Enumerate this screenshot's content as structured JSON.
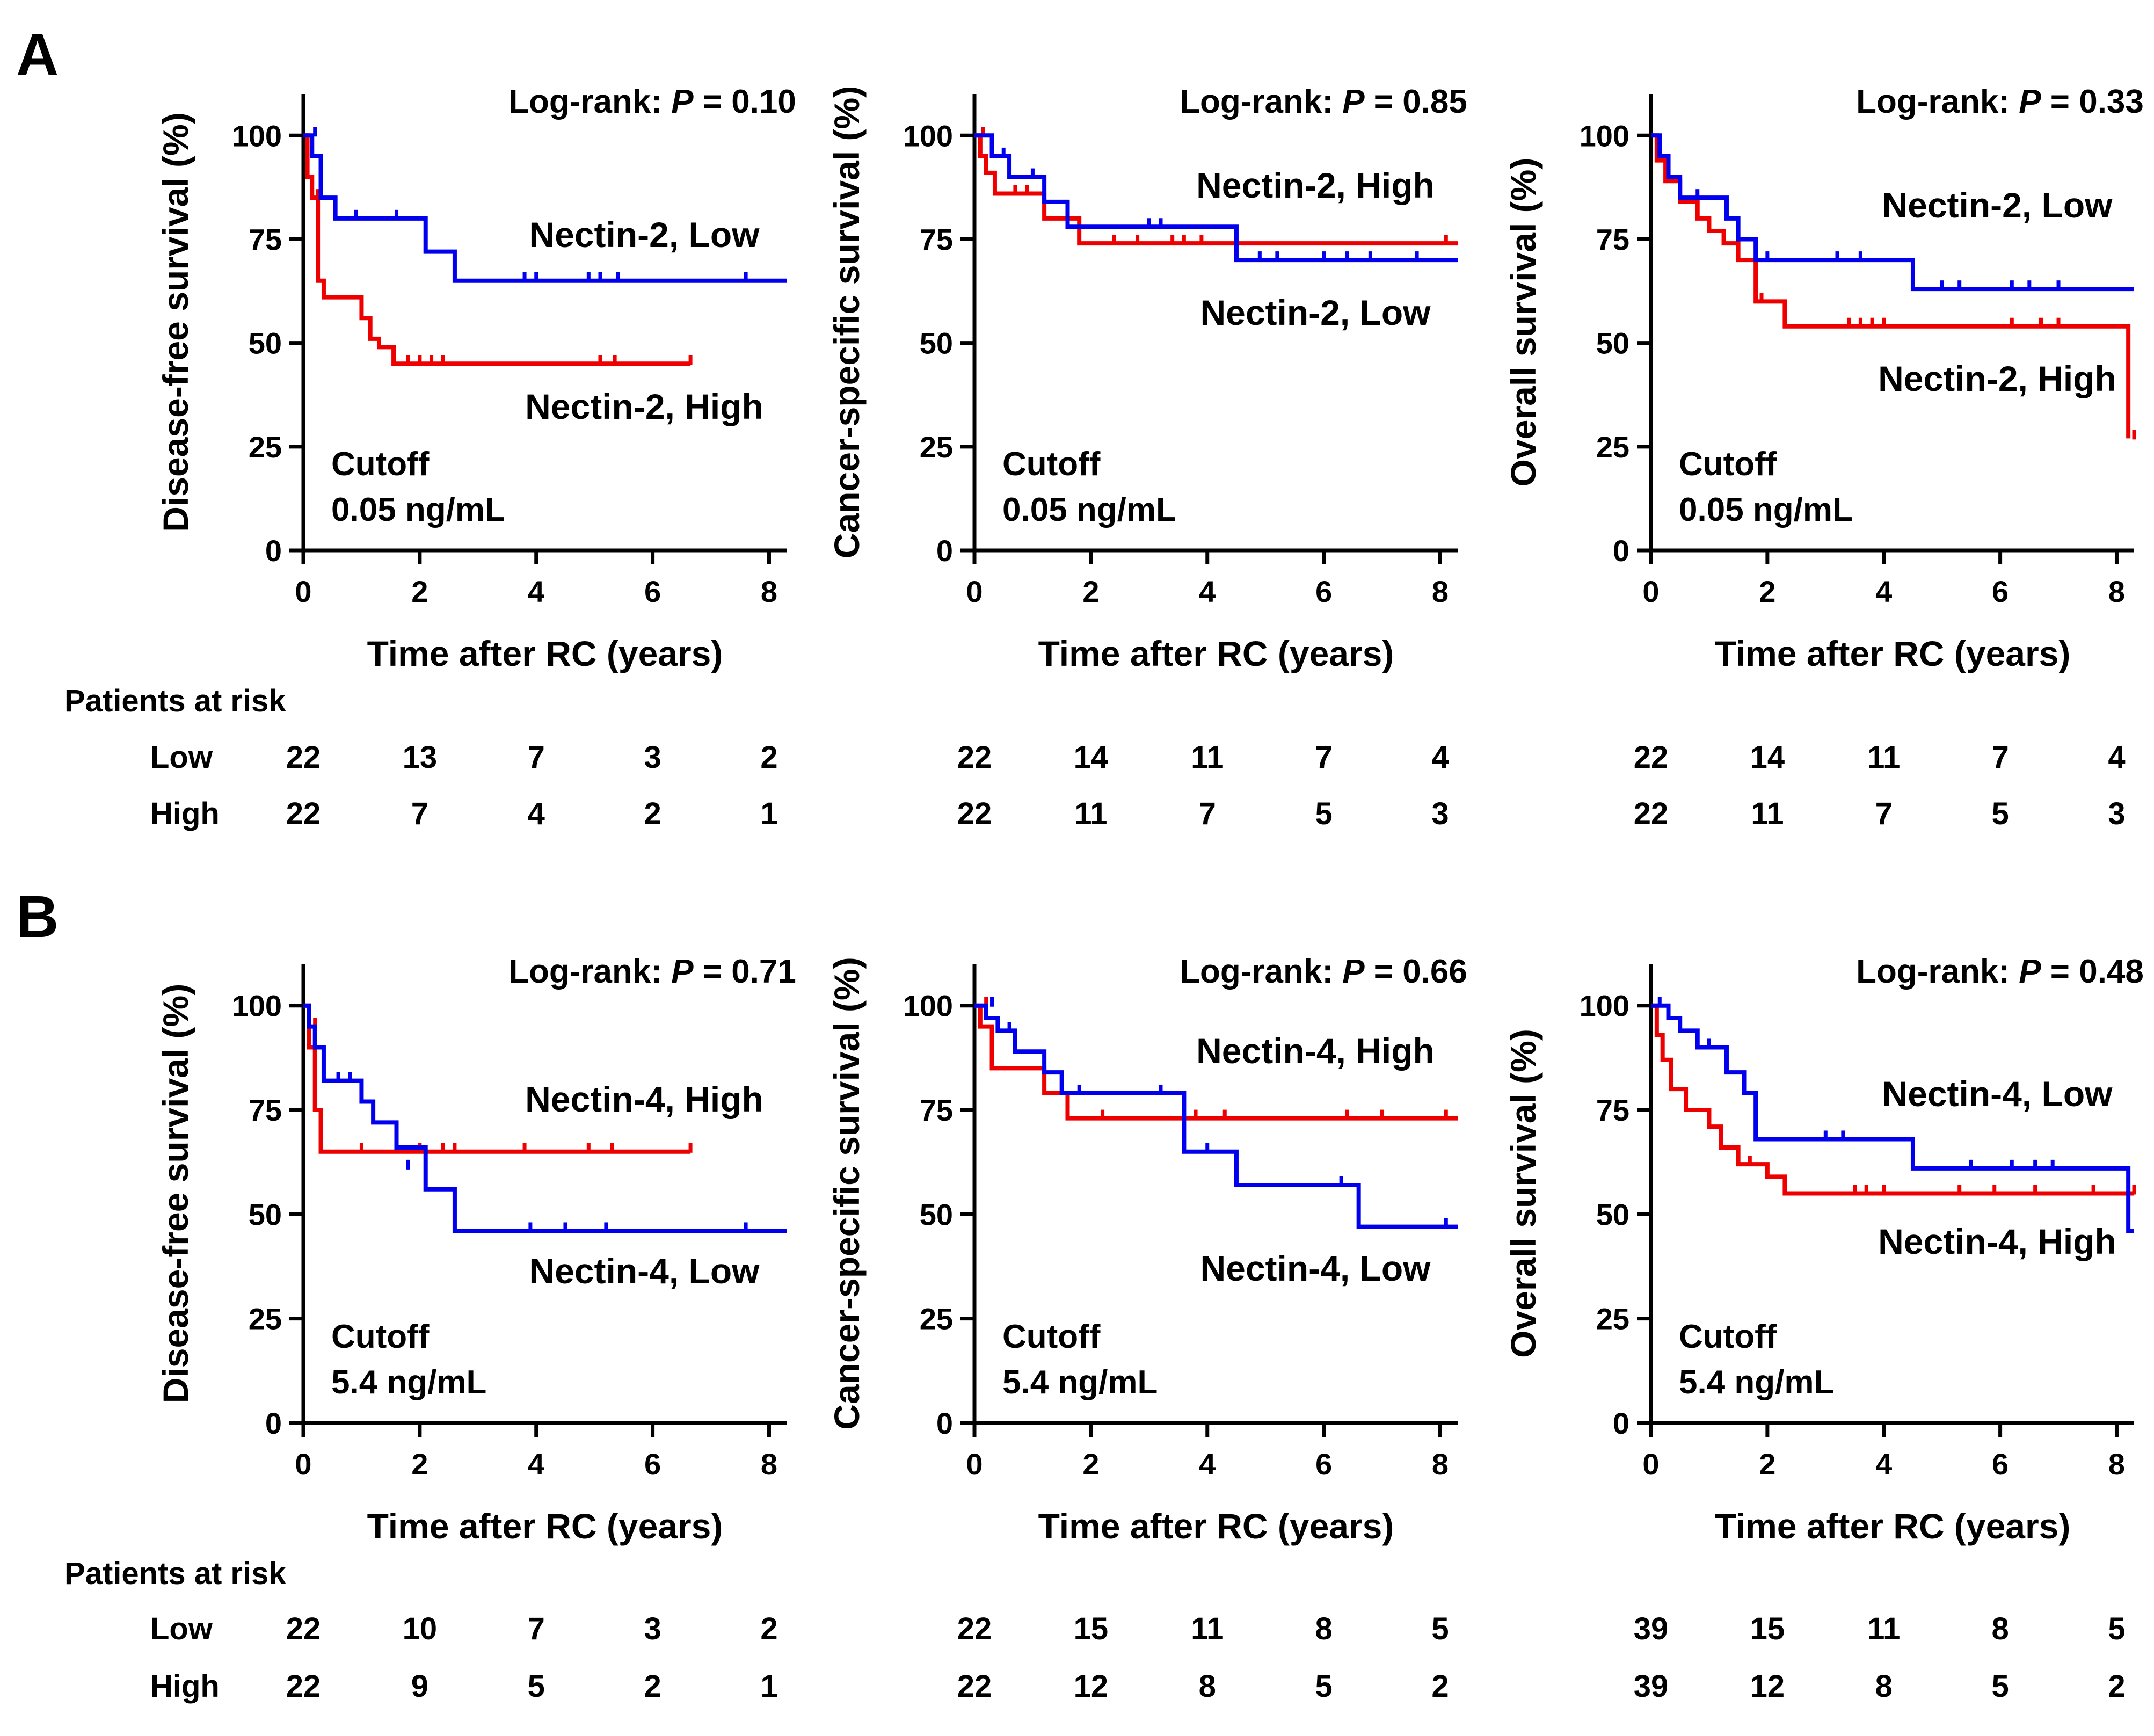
{
  "panels": [
    {
      "letter": "A"
    },
    {
      "letter": "B"
    }
  ],
  "risk_table": {
    "header": "Patients at risk",
    "low_label": "Low",
    "high_label": "High"
  },
  "colors": {
    "low": "#0000ee",
    "high": "#ee0000",
    "axis": "#000000"
  },
  "chart_data": [
    {
      "type": "line",
      "panel": "A",
      "ylabel": "Disease-free survival (%)",
      "xlabel": "Time after RC (years)",
      "xlim": [
        0,
        8.3
      ],
      "ylim": [
        0,
        110
      ],
      "xticks": [
        0,
        2,
        4,
        6,
        8
      ],
      "yticks": [
        0,
        25,
        50,
        75,
        100
      ],
      "logrank": {
        "prefix": "Log-rank: ",
        "p": "P",
        "value": " = 0.10"
      },
      "cutoff": {
        "line1": "Cutoff",
        "line2": "0.05 ng/mL"
      },
      "series": [
        {
          "name": "Nectin-2, Low",
          "group": "low",
          "x": [
            0,
            0.15,
            0.3,
            0.55,
            2.1,
            2.6,
            8.3
          ],
          "y": [
            100,
            95,
            85,
            80,
            72,
            65,
            65
          ],
          "censored": [
            [
              0.2,
              100
            ],
            [
              0.9,
              80
            ],
            [
              1.6,
              80
            ],
            [
              3.8,
              65
            ],
            [
              4.0,
              65
            ],
            [
              4.9,
              65
            ],
            [
              5.1,
              65
            ],
            [
              5.4,
              65
            ],
            [
              7.6,
              65
            ]
          ]
        },
        {
          "name": "Nectin-2, High",
          "group": "high",
          "x": [
            0,
            0.07,
            0.15,
            0.25,
            0.35,
            1.0,
            1.15,
            1.3,
            1.55,
            6.65
          ],
          "y": [
            100,
            90,
            85,
            65,
            61,
            56,
            51,
            49,
            45,
            45
          ],
          "censored": [
            [
              0.25,
              85
            ],
            [
              1.8,
              45
            ],
            [
              2.0,
              45
            ],
            [
              2.2,
              45
            ],
            [
              2.4,
              45
            ],
            [
              5.1,
              45
            ],
            [
              5.35,
              45
            ],
            [
              6.65,
              45
            ]
          ]
        }
      ],
      "labels": {
        "low": "Nectin-2, Low",
        "high": "Nectin-2, High"
      },
      "risk": {
        "low": [
          "22",
          "13",
          "7",
          "3",
          "2"
        ],
        "high": [
          "22",
          "7",
          "4",
          "2",
          "1"
        ]
      }
    },
    {
      "type": "line",
      "panel": "A",
      "ylabel": "Cancer-specific survival (%)",
      "xlabel": "Time after RC (years)",
      "xlim": [
        0,
        8.3
      ],
      "ylim": [
        0,
        110
      ],
      "xticks": [
        0,
        2,
        4,
        6,
        8
      ],
      "yticks": [
        0,
        25,
        50,
        75,
        100
      ],
      "logrank": {
        "prefix": "Log-rank: ",
        "p": "P",
        "value": " = 0.85"
      },
      "cutoff": {
        "line1": "Cutoff",
        "line2": "0.05 ng/mL"
      },
      "series": [
        {
          "name": "Nectin-2, Low",
          "group": "low",
          "x": [
            0,
            0.3,
            0.6,
            1.2,
            1.6,
            4.5,
            8.3
          ],
          "y": [
            100,
            95,
            90,
            84,
            78,
            70,
            70
          ],
          "censored": [
            [
              0.5,
              95
            ],
            [
              1.0,
              90
            ],
            [
              3.0,
              78
            ],
            [
              3.2,
              78
            ],
            [
              4.9,
              70
            ],
            [
              5.2,
              70
            ],
            [
              6.0,
              70
            ],
            [
              6.4,
              70
            ],
            [
              6.8,
              70
            ],
            [
              7.6,
              70
            ]
          ]
        },
        {
          "name": "Nectin-2, High",
          "group": "high",
          "x": [
            0,
            0.1,
            0.2,
            0.35,
            1.2,
            1.8,
            8.3
          ],
          "y": [
            100,
            95,
            91,
            86,
            80,
            74,
            74
          ],
          "censored": [
            [
              0.15,
              100
            ],
            [
              0.7,
              86
            ],
            [
              0.9,
              86
            ],
            [
              2.4,
              74
            ],
            [
              2.8,
              74
            ],
            [
              3.4,
              74
            ],
            [
              3.6,
              74
            ],
            [
              3.9,
              74
            ],
            [
              8.1,
              74
            ]
          ]
        }
      ],
      "labels": {
        "low": "Nectin-2, Low",
        "high": "Nectin-2, High"
      },
      "risk": {
        "low": [
          "22",
          "14",
          "11",
          "7",
          "4"
        ],
        "high": [
          "22",
          "11",
          "7",
          "5",
          "3"
        ]
      }
    },
    {
      "type": "line",
      "panel": "A",
      "ylabel": "Overall survival (%)",
      "xlabel": "Time after RC (years)",
      "xlim": [
        0,
        8.3
      ],
      "ylim": [
        0,
        110
      ],
      "xticks": [
        0,
        2,
        4,
        6,
        8
      ],
      "yticks": [
        0,
        25,
        50,
        75,
        100
      ],
      "logrank": {
        "prefix": "Log-rank: ",
        "p": "P",
        "value": " = 0.33"
      },
      "cutoff": {
        "line1": "Cutoff",
        "line2": "0.05 ng/mL"
      },
      "series": [
        {
          "name": "Nectin-2, Low",
          "group": "low",
          "x": [
            0,
            0.15,
            0.3,
            0.5,
            1.3,
            1.5,
            1.8,
            4.5,
            8.3
          ],
          "y": [
            100,
            95,
            90,
            85,
            80,
            75,
            70,
            63,
            63
          ],
          "censored": [
            [
              0.8,
              85
            ],
            [
              2.0,
              70
            ],
            [
              3.2,
              70
            ],
            [
              3.6,
              70
            ],
            [
              5.0,
              63
            ],
            [
              5.3,
              63
            ],
            [
              6.2,
              63
            ],
            [
              6.5,
              63
            ],
            [
              7.0,
              63
            ]
          ]
        },
        {
          "name": "Nectin-2, High",
          "group": "high",
          "x": [
            0,
            0.1,
            0.25,
            0.5,
            0.8,
            1.0,
            1.25,
            1.5,
            1.8,
            2.3,
            8.2
          ],
          "y": [
            100,
            94,
            89,
            84,
            80,
            77,
            74,
            70,
            60,
            54,
            27
          ],
          "censored": [
            [
              1.9,
              60
            ],
            [
              3.4,
              54
            ],
            [
              3.6,
              54
            ],
            [
              3.8,
              54
            ],
            [
              4.0,
              54
            ],
            [
              6.2,
              54
            ],
            [
              6.7,
              54
            ],
            [
              7.0,
              54
            ],
            [
              8.3,
              27
            ]
          ]
        }
      ],
      "labels": {
        "low": "Nectin-2, Low",
        "high": "Nectin-2, High"
      },
      "risk": {
        "low": [
          "22",
          "14",
          "11",
          "7",
          "4"
        ],
        "high": [
          "22",
          "11",
          "7",
          "5",
          "3"
        ]
      }
    },
    {
      "type": "line",
      "panel": "B",
      "ylabel": "Disease-free survival (%)",
      "xlabel": "Time after RC (years)",
      "xlim": [
        0,
        8.3
      ],
      "ylim": [
        0,
        110
      ],
      "xticks": [
        0,
        2,
        4,
        6,
        8
      ],
      "yticks": [
        0,
        25,
        50,
        75,
        100
      ],
      "logrank": {
        "prefix": "Log-rank: ",
        "p": "P",
        "value": " = 0.71"
      },
      "cutoff": {
        "line1": "Cutoff",
        "line2": "5.4 ng/mL"
      },
      "series": [
        {
          "name": "Nectin-4, Low",
          "group": "low",
          "x": [
            0,
            0.1,
            0.2,
            0.35,
            1.0,
            1.2,
            1.6,
            2.1,
            2.6,
            8.3
          ],
          "y": [
            100,
            95,
            90,
            82,
            77,
            72,
            66,
            56,
            46,
            46
          ],
          "censored": [
            [
              0.6,
              82
            ],
            [
              0.8,
              82
            ],
            [
              1.8,
              61
            ],
            [
              3.9,
              46
            ],
            [
              4.5,
              46
            ],
            [
              5.2,
              46
            ],
            [
              7.6,
              46
            ]
          ]
        },
        {
          "name": "Nectin-4, High",
          "group": "high",
          "x": [
            0,
            0.1,
            0.2,
            0.3,
            6.65
          ],
          "y": [
            100,
            90,
            75,
            65,
            65
          ],
          "censored": [
            [
              0.2,
              95
            ],
            [
              1.0,
              65
            ],
            [
              2.0,
              65
            ],
            [
              2.4,
              65
            ],
            [
              2.6,
              65
            ],
            [
              3.8,
              65
            ],
            [
              4.9,
              65
            ],
            [
              5.3,
              65
            ],
            [
              6.65,
              65
            ]
          ]
        }
      ],
      "labels": {
        "low": "Nectin-4, Low",
        "high": "Nectin-4, High"
      },
      "risk": {
        "low": [
          "22",
          "10",
          "7",
          "3",
          "2"
        ],
        "high": [
          "22",
          "9",
          "5",
          "2",
          "1"
        ]
      }
    },
    {
      "type": "line",
      "panel": "B",
      "ylabel": "Cancer-specific survival (%)",
      "xlabel": "Time after RC (years)",
      "xlim": [
        0,
        8.3
      ],
      "ylim": [
        0,
        110
      ],
      "xticks": [
        0,
        2,
        4,
        6,
        8
      ],
      "yticks": [
        0,
        25,
        50,
        75,
        100
      ],
      "logrank": {
        "prefix": "Log-rank: ",
        "p": "P",
        "value": " = 0.66"
      },
      "cutoff": {
        "line1": "Cutoff",
        "line2": "5.4 ng/mL"
      },
      "series": [
        {
          "name": "Nectin-4, Low",
          "group": "low",
          "x": [
            0,
            0.2,
            0.4,
            0.7,
            1.2,
            1.5,
            3.6,
            4.5,
            5.5,
            6.6,
            8.3
          ],
          "y": [
            100,
            97,
            94,
            89,
            84,
            79,
            65,
            57,
            57,
            47,
            47
          ],
          "censored": [
            [
              0.3,
              100
            ],
            [
              0.6,
              94
            ],
            [
              1.8,
              79
            ],
            [
              3.2,
              79
            ],
            [
              4.0,
              65
            ],
            [
              6.3,
              57
            ],
            [
              8.1,
              47
            ]
          ]
        },
        {
          "name": "Nectin-4, High",
          "group": "high",
          "x": [
            0,
            0.1,
            0.3,
            1.2,
            1.6,
            8.3
          ],
          "y": [
            100,
            95,
            85,
            79,
            73,
            73
          ],
          "censored": [
            [
              0.2,
              100
            ],
            [
              2.2,
              73
            ],
            [
              3.8,
              73
            ],
            [
              4.3,
              73
            ],
            [
              6.4,
              73
            ],
            [
              7.0,
              73
            ],
            [
              8.1,
              73
            ]
          ]
        }
      ],
      "labels": {
        "low": "Nectin-4, Low",
        "high": "Nectin-4, High"
      },
      "risk": {
        "low": [
          "22",
          "15",
          "11",
          "8",
          "5"
        ],
        "high": [
          "22",
          "12",
          "8",
          "5",
          "2"
        ]
      }
    },
    {
      "type": "line",
      "panel": "B",
      "ylabel": "Overall survival (%)",
      "xlabel": "Time after RC (years)",
      "xlim": [
        0,
        8.3
      ],
      "ylim": [
        0,
        110
      ],
      "xticks": [
        0,
        2,
        4,
        6,
        8
      ],
      "yticks": [
        0,
        25,
        50,
        75,
        100
      ],
      "logrank": {
        "prefix": "Log-rank: ",
        "p": "P",
        "value": " = 0.48"
      },
      "cutoff": {
        "line1": "Cutoff",
        "line2": "5.4 ng/mL"
      },
      "series": [
        {
          "name": "Nectin-4, Low",
          "group": "low",
          "x": [
            0,
            0.3,
            0.5,
            0.8,
            1.3,
            1.6,
            1.8,
            4.5,
            8.2,
            8.3
          ],
          "y": [
            100,
            97,
            94,
            90,
            84,
            79,
            68,
            61,
            46,
            46
          ],
          "censored": [
            [
              0.15,
              100
            ],
            [
              1.0,
              90
            ],
            [
              3.0,
              68
            ],
            [
              3.3,
              68
            ],
            [
              5.5,
              61
            ],
            [
              6.2,
              61
            ],
            [
              6.6,
              61
            ],
            [
              6.9,
              61
            ]
          ]
        },
        {
          "name": "Nectin-4, High",
          "group": "high",
          "x": [
            0,
            0.1,
            0.2,
            0.35,
            0.6,
            1.0,
            1.2,
            1.5,
            2.0,
            2.3,
            8.3
          ],
          "y": [
            100,
            93,
            87,
            80,
            75,
            71,
            66,
            62,
            59,
            55,
            55
          ],
          "censored": [
            [
              1.7,
              62
            ],
            [
              3.5,
              55
            ],
            [
              3.7,
              55
            ],
            [
              4.0,
              55
            ],
            [
              5.3,
              55
            ],
            [
              5.9,
              55
            ],
            [
              6.6,
              55
            ],
            [
              7.6,
              55
            ],
            [
              8.3,
              55
            ]
          ]
        }
      ],
      "labels": {
        "low": "Nectin-4, Low",
        "high": "Nectin-4, High"
      },
      "risk": {
        "low": [
          "39",
          "15",
          "11",
          "8",
          "5"
        ],
        "high": [
          "39",
          "12",
          "8",
          "5",
          "2"
        ]
      }
    }
  ]
}
